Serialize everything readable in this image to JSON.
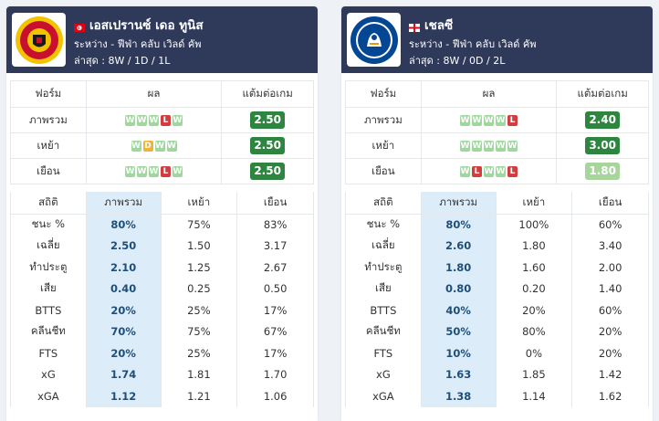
{
  "colors": {
    "header_bg": "#2f3a5a",
    "win": "#9fd79e",
    "draw": "#f0b33a",
    "loss": "#cf3f3f",
    "ppg_dark": "#2e8540",
    "ppg_light": "#a8d59b",
    "highlight": "#dcedf9"
  },
  "home": {
    "name": "เอสเปรานซ์ เดอ ทูนิส",
    "flag_icon": "tunisia-flag-icon",
    "crest_icon": "esperance-crest-icon",
    "competition": "ระหว่าง - ฟีฟ่า คลับ เวิลด์ คัพ",
    "recent": "ล่าสุด : 8W / 1D / 1L",
    "form_headers": {
      "form": "ฟอร์ม",
      "results": "ผล",
      "ppg": "แต้มต่อเกม"
    },
    "form_rows": [
      {
        "label": "ภาพรวม",
        "results": [
          "W",
          "W",
          "W",
          "L",
          "W"
        ],
        "ppg": "2.50",
        "ppg_style": "dark"
      },
      {
        "label": "เหย้า",
        "results": [
          "W",
          "D",
          "W",
          "W"
        ],
        "ppg": "2.50",
        "ppg_style": "dark"
      },
      {
        "label": "เยือน",
        "results": [
          "W",
          "W",
          "W",
          "L",
          "W"
        ],
        "ppg": "2.50",
        "ppg_style": "dark"
      }
    ],
    "stats_headers": [
      "สถิติ",
      "ภาพรวม",
      "เหย้า",
      "เยือน"
    ],
    "stats_rows": [
      {
        "label": "ชนะ %",
        "overall": "80%",
        "home": "75%",
        "away": "83%"
      },
      {
        "label": "เฉลี่ย",
        "overall": "2.50",
        "home": "1.50",
        "away": "3.17"
      },
      {
        "label": "ทำประตู",
        "overall": "2.10",
        "home": "1.25",
        "away": "2.67"
      },
      {
        "label": "เสีย",
        "overall": "0.40",
        "home": "0.25",
        "away": "0.50"
      },
      {
        "label": "BTTS",
        "overall": "20%",
        "home": "25%",
        "away": "17%"
      },
      {
        "label": "คลีนชีท",
        "overall": "70%",
        "home": "75%",
        "away": "67%"
      },
      {
        "label": "FTS",
        "overall": "20%",
        "home": "25%",
        "away": "17%"
      },
      {
        "label": "xG",
        "overall": "1.74",
        "home": "1.81",
        "away": "1.70"
      },
      {
        "label": "xGA",
        "overall": "1.12",
        "home": "1.21",
        "away": "1.06"
      }
    ]
  },
  "away": {
    "name": "เชลซี",
    "flag_icon": "england-flag-icon",
    "crest_icon": "chelsea-crest-icon",
    "competition": "ระหว่าง - ฟีฟ่า คลับ เวิลด์ คัพ",
    "recent": "ล่าสุด : 8W / 0D / 2L",
    "form_headers": {
      "form": "ฟอร์ม",
      "results": "ผล",
      "ppg": "แต้มต่อเกม"
    },
    "form_rows": [
      {
        "label": "ภาพรวม",
        "results": [
          "W",
          "W",
          "W",
          "W",
          "L"
        ],
        "ppg": "2.40",
        "ppg_style": "dark"
      },
      {
        "label": "เหย้า",
        "results": [
          "W",
          "W",
          "W",
          "W",
          "W"
        ],
        "ppg": "3.00",
        "ppg_style": "dark"
      },
      {
        "label": "เยือน",
        "results": [
          "W",
          "L",
          "W",
          "W",
          "L"
        ],
        "ppg": "1.80",
        "ppg_style": "light"
      }
    ],
    "stats_headers": [
      "สถิติ",
      "ภาพรวม",
      "เหย้า",
      "เยือน"
    ],
    "stats_rows": [
      {
        "label": "ชนะ %",
        "overall": "80%",
        "home": "100%",
        "away": "60%"
      },
      {
        "label": "เฉลี่ย",
        "overall": "2.60",
        "home": "1.80",
        "away": "3.40"
      },
      {
        "label": "ทำประตู",
        "overall": "1.80",
        "home": "1.60",
        "away": "2.00"
      },
      {
        "label": "เสีย",
        "overall": "0.80",
        "home": "0.20",
        "away": "1.40"
      },
      {
        "label": "BTTS",
        "overall": "40%",
        "home": "20%",
        "away": "60%"
      },
      {
        "label": "คลีนชีท",
        "overall": "50%",
        "home": "80%",
        "away": "20%"
      },
      {
        "label": "FTS",
        "overall": "10%",
        "home": "0%",
        "away": "20%"
      },
      {
        "label": "xG",
        "overall": "1.63",
        "home": "1.85",
        "away": "1.42"
      },
      {
        "label": "xGA",
        "overall": "1.38",
        "home": "1.14",
        "away": "1.62"
      }
    ]
  }
}
